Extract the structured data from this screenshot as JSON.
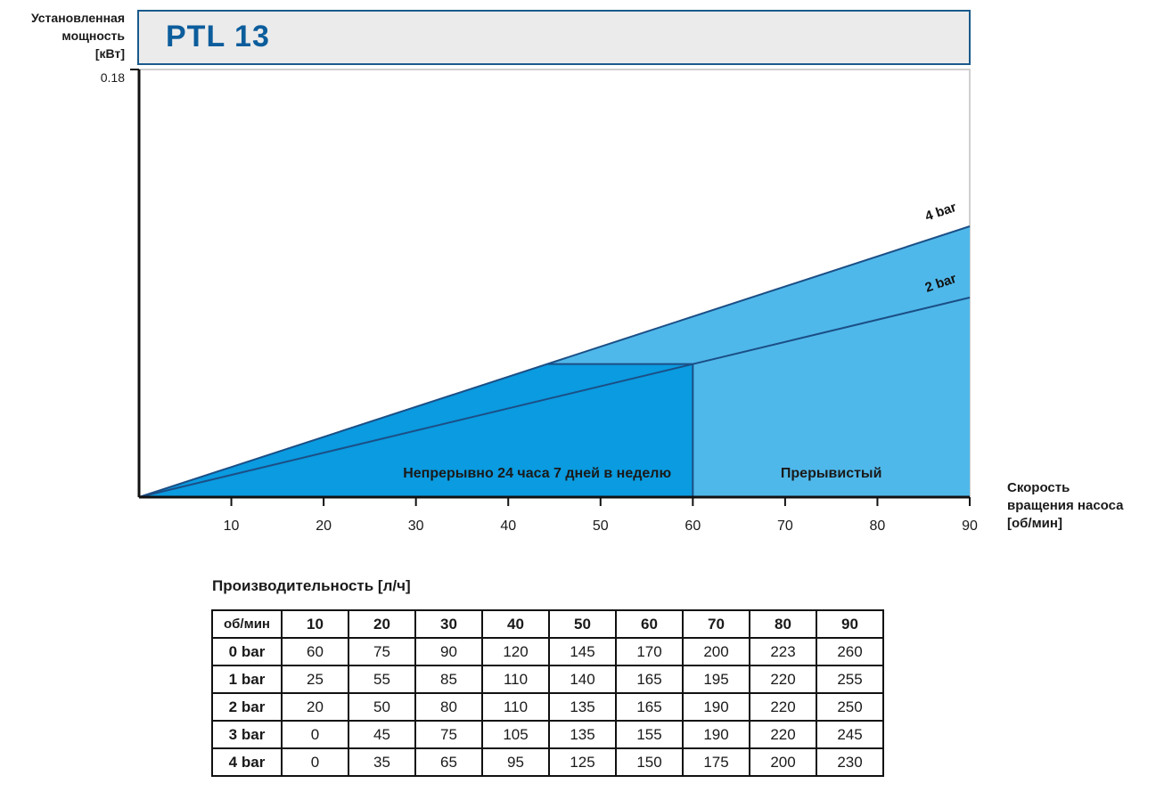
{
  "header": {
    "title": "PTL 13"
  },
  "y_axis_label": [
    "Установленная",
    "мощность",
    "[кВт]"
  ],
  "x_axis_label": [
    "Скорость",
    "вращения насоса",
    "[об/мин]"
  ],
  "chart_data": {
    "type": "area",
    "title": "PTL 13",
    "ylabel": "Установленная мощность [кВт]",
    "xlabel": "Скорость вращения насоса [об/мин]",
    "xlim": [
      0,
      90
    ],
    "ylim": [
      0,
      0.18
    ],
    "x_ticks": [
      10,
      20,
      30,
      40,
      50,
      60,
      70,
      80,
      90
    ],
    "y_ticks": [
      0.18
    ],
    "series": [
      {
        "name": "4 bar",
        "x": [
          0,
          90
        ],
        "y": [
          0,
          0.114
        ]
      },
      {
        "name": "2 bar",
        "x": [
          0,
          90
        ],
        "y": [
          0,
          0.084
        ]
      }
    ],
    "regions": [
      {
        "label": "Непрерывно 24 часа 7 дней в неделю",
        "x_range": [
          0,
          60
        ]
      },
      {
        "label": "Прерывистый",
        "x_range": [
          60,
          90
        ]
      }
    ],
    "colors": {
      "continuous": "#0a9be0",
      "intermittent": "#4fb8ea",
      "line": "#1b4f86"
    }
  },
  "table": {
    "title": "Производительность [л/ч]",
    "corner_header": "об/мин",
    "columns": [
      "10",
      "20",
      "30",
      "40",
      "50",
      "60",
      "70",
      "80",
      "90"
    ],
    "rows": [
      {
        "label": "0 bar",
        "values": [
          "60",
          "75",
          "90",
          "120",
          "145",
          "170",
          "200",
          "223",
          "260"
        ]
      },
      {
        "label": "1 bar",
        "values": [
          "25",
          "55",
          "85",
          "110",
          "140",
          "165",
          "195",
          "220",
          "255"
        ]
      },
      {
        "label": "2 bar",
        "values": [
          "20",
          "50",
          "80",
          "110",
          "135",
          "165",
          "190",
          "220",
          "250"
        ]
      },
      {
        "label": "3 bar",
        "values": [
          "0",
          "45",
          "75",
          "105",
          "135",
          "155",
          "190",
          "220",
          "245"
        ]
      },
      {
        "label": "4 bar",
        "values": [
          "0",
          "35",
          "65",
          "95",
          "125",
          "150",
          "175",
          "200",
          "230"
        ]
      }
    ]
  }
}
